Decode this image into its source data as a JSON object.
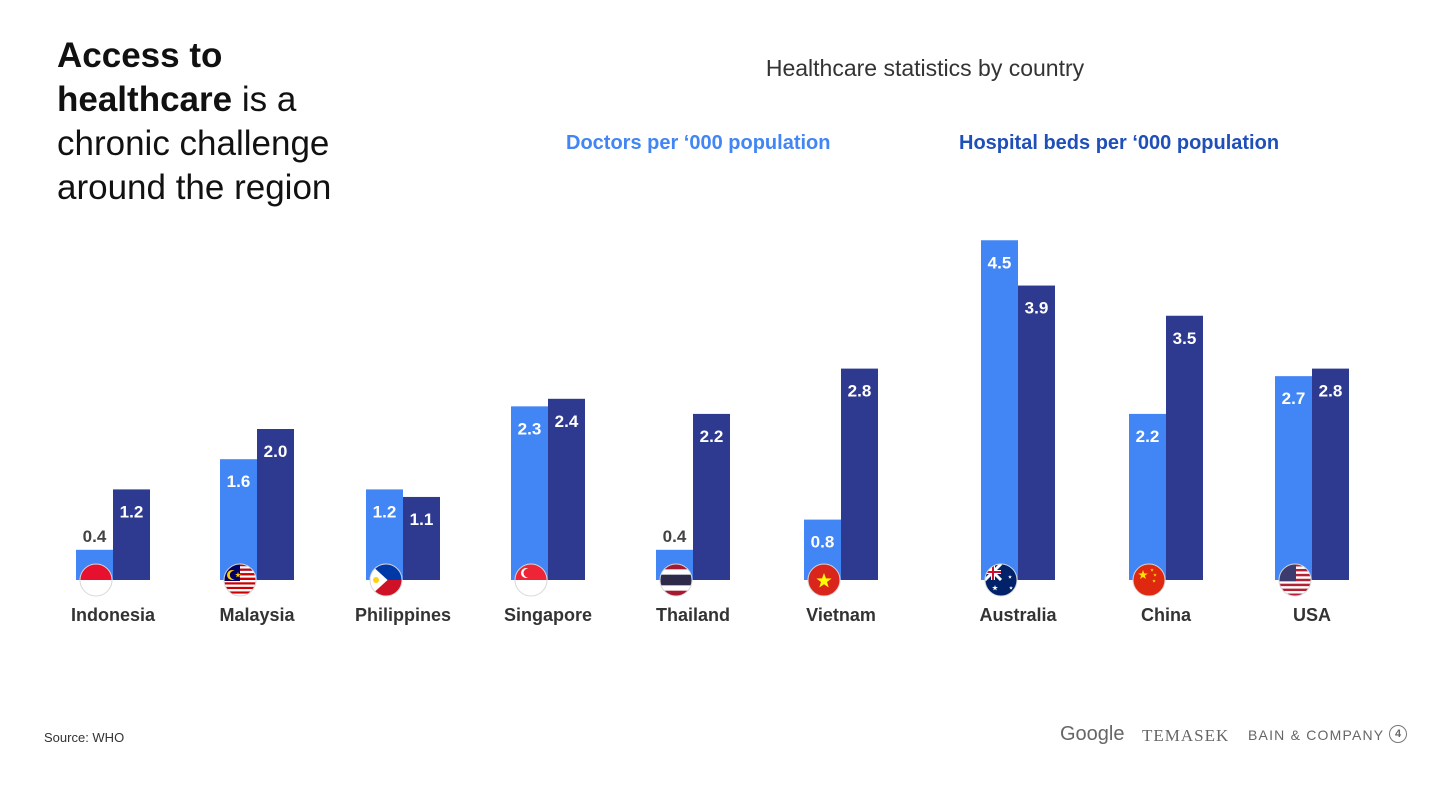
{
  "headline": {
    "bold_1": "Access to",
    "bold_2": "healthcare",
    "rest_1": " is a",
    "rest_2": "chronic challenge",
    "rest_3": "around the region"
  },
  "colors": {
    "doctors": "#4285F4",
    "beds": "#2E3A8F",
    "doctors_legend_text": "#4285F4",
    "beds_legend_text": "#1F4FB8"
  },
  "source": "Source: WHO",
  "logos": {
    "google": "Google",
    "temasek": "TEMASEK",
    "bain": "BAIN & COMPANY",
    "badge": "4"
  },
  "chart_data": {
    "type": "bar",
    "title": "Healthcare statistics by country",
    "categories": [
      "Indonesia",
      "Malaysia",
      "Philippines",
      "Singapore",
      "Thailand",
      "Vietnam",
      "Australia",
      "China",
      "USA"
    ],
    "flags": [
      "indonesia-flag-icon",
      "malaysia-flag-icon",
      "philippines-flag-icon",
      "singapore-flag-icon",
      "thailand-flag-icon",
      "vietnam-flag-icon",
      "australia-flag-icon",
      "china-flag-icon",
      "usa-flag-icon"
    ],
    "series": [
      {
        "name": "Doctors per ‘000 population",
        "values": [
          0.4,
          1.6,
          1.2,
          2.3,
          0.4,
          0.8,
          4.5,
          2.2,
          2.7
        ],
        "labels": [
          "0.4",
          "1.6",
          "1.2",
          "2.3",
          "0.4",
          "0.8",
          "4.5",
          "2.2",
          "2.7"
        ]
      },
      {
        "name": "Hospital beds per ‘000 population",
        "values": [
          1.2,
          2.0,
          1.1,
          2.4,
          2.2,
          2.8,
          3.9,
          3.5,
          2.8
        ],
        "labels": [
          "1.2",
          "2.0",
          "1.1",
          "2.4",
          "2.2",
          "2.8",
          "3.9",
          "3.5",
          "2.8"
        ]
      }
    ],
    "xlabel": "",
    "ylabel": "",
    "grid": false,
    "legend_position": "top"
  }
}
